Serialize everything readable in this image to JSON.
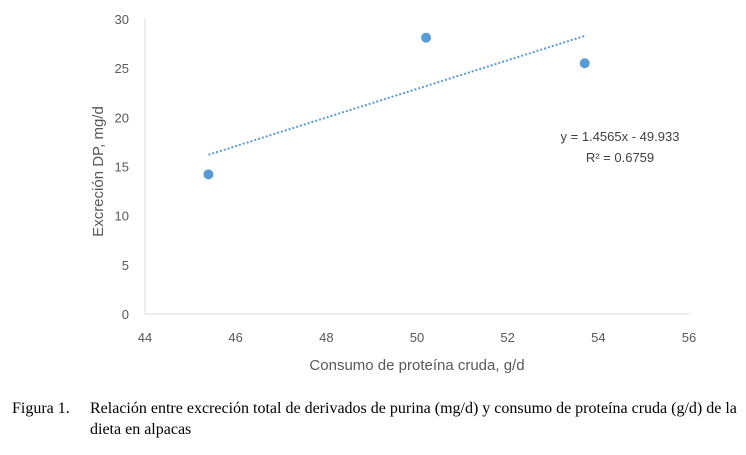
{
  "chart_data": {
    "type": "scatter",
    "title": "",
    "xlabel": "Consumo de proteína cruda, g/d",
    "ylabel": "Excreción DP, mg/d",
    "xlim": [
      44,
      56
    ],
    "ylim": [
      0,
      30
    ],
    "xticks": [
      "44",
      "46",
      "48",
      "50",
      "52",
      "54",
      "56"
    ],
    "yticks": [
      "0",
      "5",
      "10",
      "15",
      "20",
      "25",
      "30"
    ],
    "points": [
      {
        "x": 45.4,
        "y": 14.2
      },
      {
        "x": 50.2,
        "y": 28.1
      },
      {
        "x": 53.7,
        "y": 25.5
      }
    ],
    "trendline": {
      "type": "linear",
      "slope": 1.4565,
      "intercept": -49.933,
      "x_start": 45.4,
      "x_end": 53.7
    },
    "annotations": {
      "equation": "y = 1.4565x - 49.933",
      "r2": "R² = 0.6759"
    },
    "colors": {
      "points": "#5B9BD5",
      "trendline": "#5B9BD5",
      "axis": "#D9D9D9"
    }
  },
  "caption": {
    "number": "Figura 1.",
    "text": "Relación entre excreción total de derivados de purina (mg/d) y consumo de proteína cruda (g/d) de la dieta en alpacas"
  }
}
